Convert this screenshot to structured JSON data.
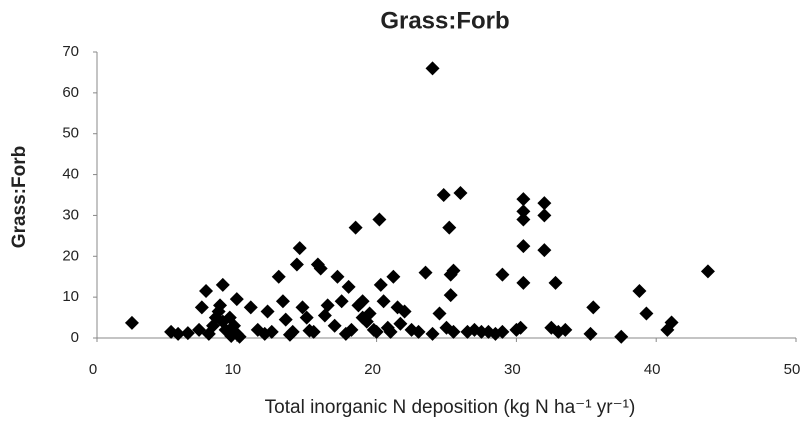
{
  "chart_data": {
    "type": "scatter",
    "title": "Grass:Forb",
    "xlabel": "Total inorganic N deposition (kg N ha⁻¹ yr⁻¹)",
    "ylabel": "Grass:Forb",
    "color": "#000000",
    "grid": false,
    "xlim": [
      0,
      50
    ],
    "xticks": [
      0,
      10,
      20,
      30,
      40,
      50
    ],
    "ylim": [
      0,
      70
    ],
    "yticks": [
      0,
      10,
      20,
      30,
      40,
      50,
      60,
      70
    ],
    "x": [
      2.5,
      5.3,
      5.8,
      6.5,
      7.3,
      7.5,
      7.8,
      8,
      8.3,
      8.5,
      8.7,
      9,
      9,
      9.2,
      9.5,
      9.8,
      10,
      10,
      9.6,
      10.2,
      8.8,
      11,
      11.5,
      12,
      12.2,
      12.5,
      13,
      13.3,
      13.5,
      13.8,
      14,
      14.3,
      14.5,
      14.7,
      15,
      15.2,
      15.5,
      15.8,
      16,
      16.3,
      16.5,
      17,
      17.2,
      17.5,
      17.8,
      18,
      18.2,
      18.5,
      18.7,
      19,
      19,
      19.3,
      19.5,
      19.8,
      20,
      20.2,
      20.3,
      20.5,
      20.8,
      21,
      21.2,
      21.5,
      21.7,
      22,
      22.5,
      23,
      23.5,
      24,
      24,
      24.5,
      24.8,
      25,
      25.2,
      25.3,
      25.3,
      25.5,
      25.5,
      26,
      26.5,
      27,
      27.5,
      28,
      28.5,
      29,
      29,
      30,
      30.3,
      30.5,
      30.5,
      30.5,
      30.5,
      30.5,
      32,
      32,
      32,
      32.5,
      32.8,
      33,
      33.5,
      35.3,
      35.5,
      37.5,
      38.8,
      39.3,
      40.8,
      41.1,
      43.7
    ],
    "values": [
      3.7,
      1.5,
      1,
      1.2,
      2,
      7.5,
      11.5,
      1,
      3,
      5,
      6.5,
      13,
      4,
      2,
      5,
      3,
      9.5,
      1,
      0.5,
      0.3,
      8,
      7.5,
      2,
      1,
      6.5,
      1.5,
      15,
      9,
      4.5,
      0.8,
      1.5,
      18,
      22,
      7.5,
      5,
      1.8,
      1.5,
      18,
      17,
      5.5,
      8,
      3,
      15,
      9,
      1,
      12.5,
      2,
      27,
      8,
      5,
      9,
      4,
      6,
      2,
      1.5,
      29,
      13,
      9,
      2.5,
      1.5,
      15,
      7.5,
      3.5,
      6.5,
      2,
      1.5,
      16,
      1,
      66,
      6,
      35,
      2.5,
      27,
      15.5,
      10.5,
      16.5,
      1.5,
      35.5,
      1.5,
      2,
      1.5,
      1.5,
      1,
      15.5,
      1.5,
      2,
      2.5,
      34,
      31,
      29,
      22.5,
      13.5,
      33,
      30,
      21.5,
      2.5,
      13.5,
      1.5,
      2,
      1,
      7.5,
      0.3,
      11.5,
      6,
      2,
      3.8,
      16.3
    ]
  }
}
